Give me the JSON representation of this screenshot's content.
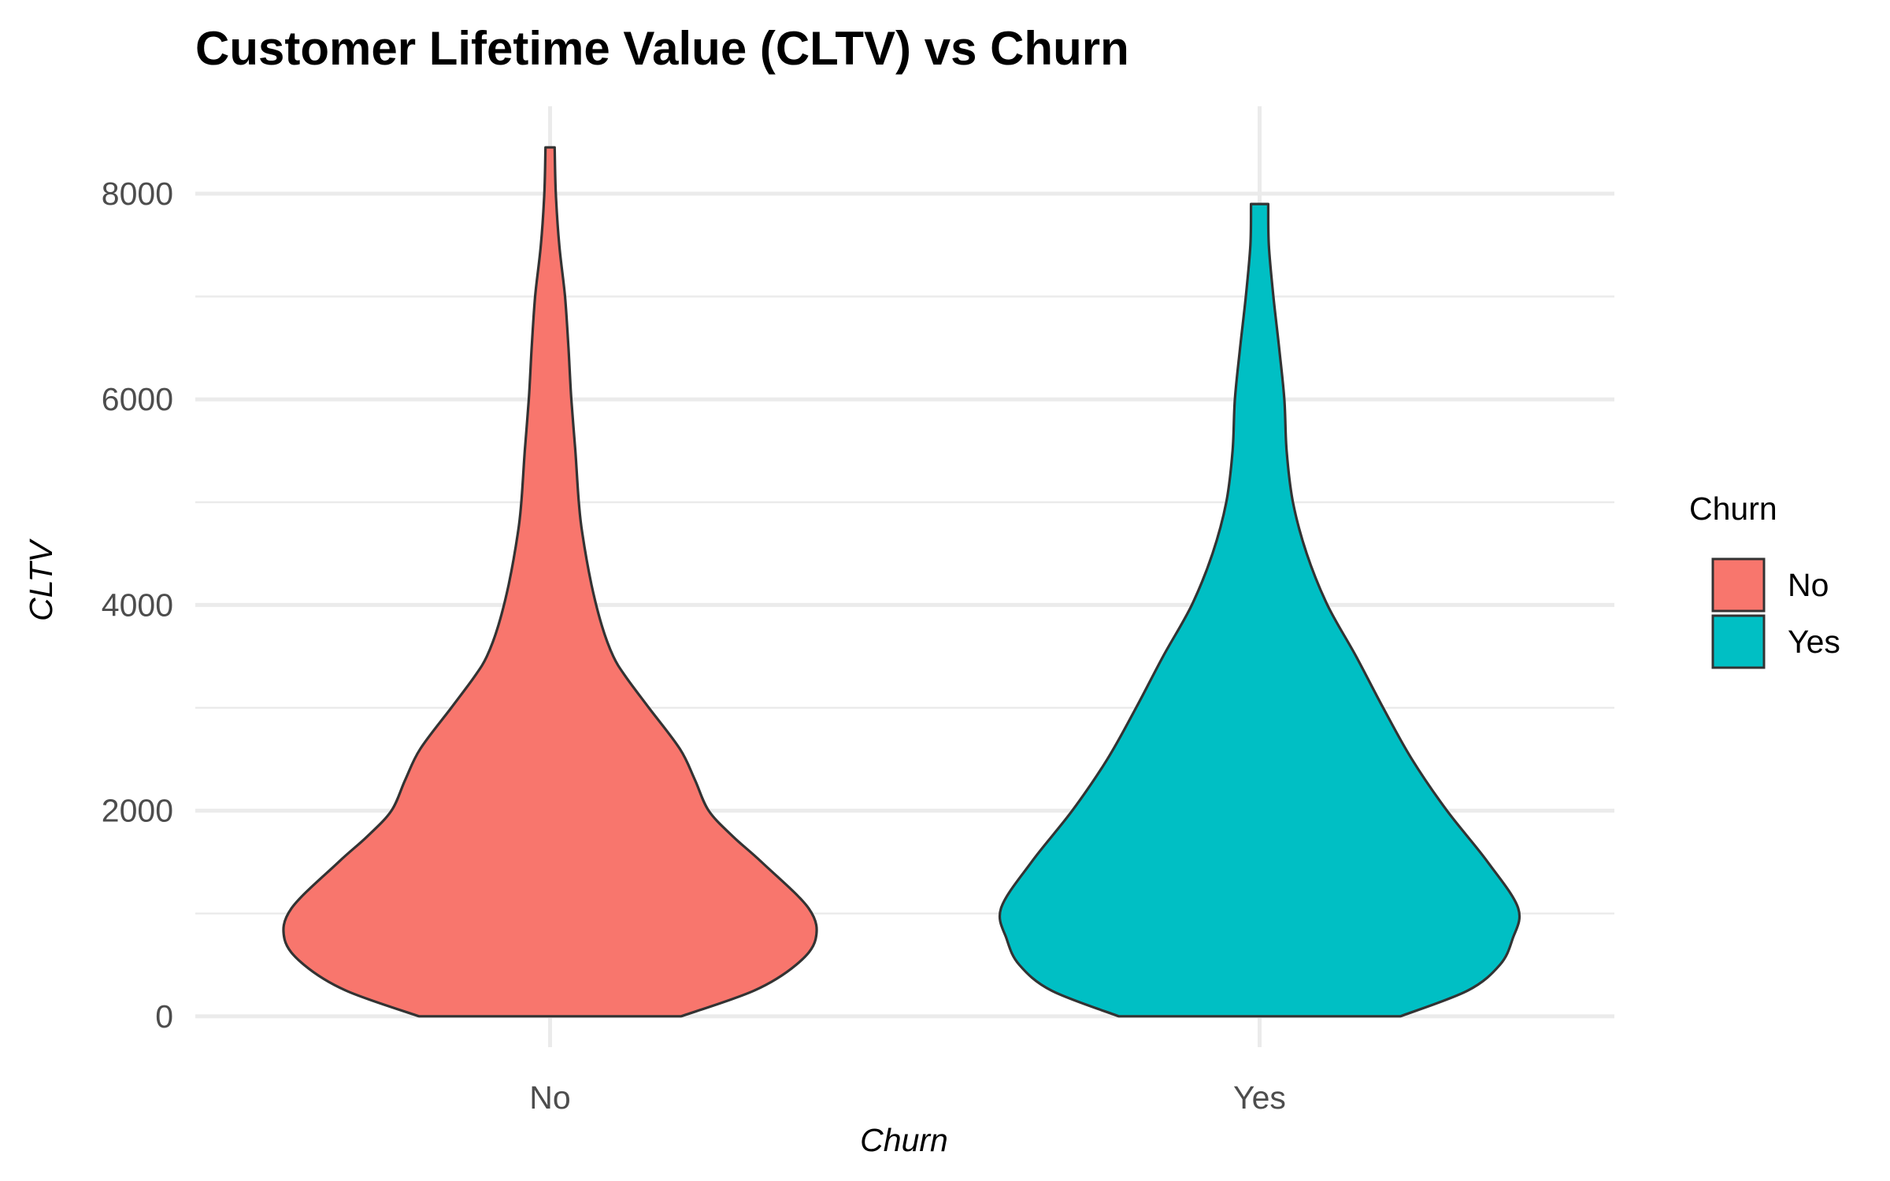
{
  "chart_data": {
    "type": "violin",
    "title": "Customer Lifetime Value (CLTV) vs Churn",
    "xlabel": "Churn",
    "ylabel": "CLTV",
    "ylim": [
      -300,
      8850
    ],
    "y_ticks": [
      0,
      2000,
      4000,
      6000,
      8000
    ],
    "grid": true,
    "legend": {
      "title": "Churn",
      "position": "right"
    },
    "categories": [
      "No",
      "Yes"
    ],
    "series": [
      {
        "name": "No",
        "color": "#F8766D",
        "y_max": 8450,
        "density_profile": [
          {
            "y": 0,
            "half_width": 0.228
          },
          {
            "y": 250,
            "half_width": 0.355
          },
          {
            "y": 500,
            "half_width": 0.428
          },
          {
            "y": 750,
            "half_width": 0.462
          },
          {
            "y": 1050,
            "half_width": 0.45
          },
          {
            "y": 1500,
            "half_width": 0.368
          },
          {
            "y": 1750,
            "half_width": 0.318
          },
          {
            "y": 2000,
            "half_width": 0.276
          },
          {
            "y": 2300,
            "half_width": 0.252
          },
          {
            "y": 2600,
            "half_width": 0.226
          },
          {
            "y": 3000,
            "half_width": 0.172
          },
          {
            "y": 3300,
            "half_width": 0.132
          },
          {
            "y": 3500,
            "half_width": 0.11
          },
          {
            "y": 3800,
            "half_width": 0.09
          },
          {
            "y": 4200,
            "half_width": 0.072
          },
          {
            "y": 4700,
            "half_width": 0.056
          },
          {
            "y": 5000,
            "half_width": 0.05
          },
          {
            "y": 5500,
            "half_width": 0.044
          },
          {
            "y": 6000,
            "half_width": 0.037
          },
          {
            "y": 6500,
            "half_width": 0.032
          },
          {
            "y": 7000,
            "half_width": 0.026
          },
          {
            "y": 7500,
            "half_width": 0.016
          },
          {
            "y": 8000,
            "half_width": 0.01
          },
          {
            "y": 8450,
            "half_width": 0.008
          }
        ]
      },
      {
        "name": "Yes",
        "color": "#00BFC4",
        "y_max": 7900,
        "density_profile": [
          {
            "y": 0,
            "half_width": 0.245
          },
          {
            "y": 250,
            "half_width": 0.362
          },
          {
            "y": 500,
            "half_width": 0.418
          },
          {
            "y": 750,
            "half_width": 0.44
          },
          {
            "y": 1050,
            "half_width": 0.45
          },
          {
            "y": 1500,
            "half_width": 0.397
          },
          {
            "y": 2000,
            "half_width": 0.326
          },
          {
            "y": 2500,
            "half_width": 0.265
          },
          {
            "y": 3000,
            "half_width": 0.215
          },
          {
            "y": 3500,
            "half_width": 0.168
          },
          {
            "y": 4000,
            "half_width": 0.118
          },
          {
            "y": 4500,
            "half_width": 0.082
          },
          {
            "y": 5000,
            "half_width": 0.058
          },
          {
            "y": 5500,
            "half_width": 0.047
          },
          {
            "y": 6000,
            "half_width": 0.043
          },
          {
            "y": 6500,
            "half_width": 0.034
          },
          {
            "y": 7000,
            "half_width": 0.024
          },
          {
            "y": 7500,
            "half_width": 0.016
          },
          {
            "y": 7900,
            "half_width": 0.015
          }
        ]
      }
    ]
  }
}
